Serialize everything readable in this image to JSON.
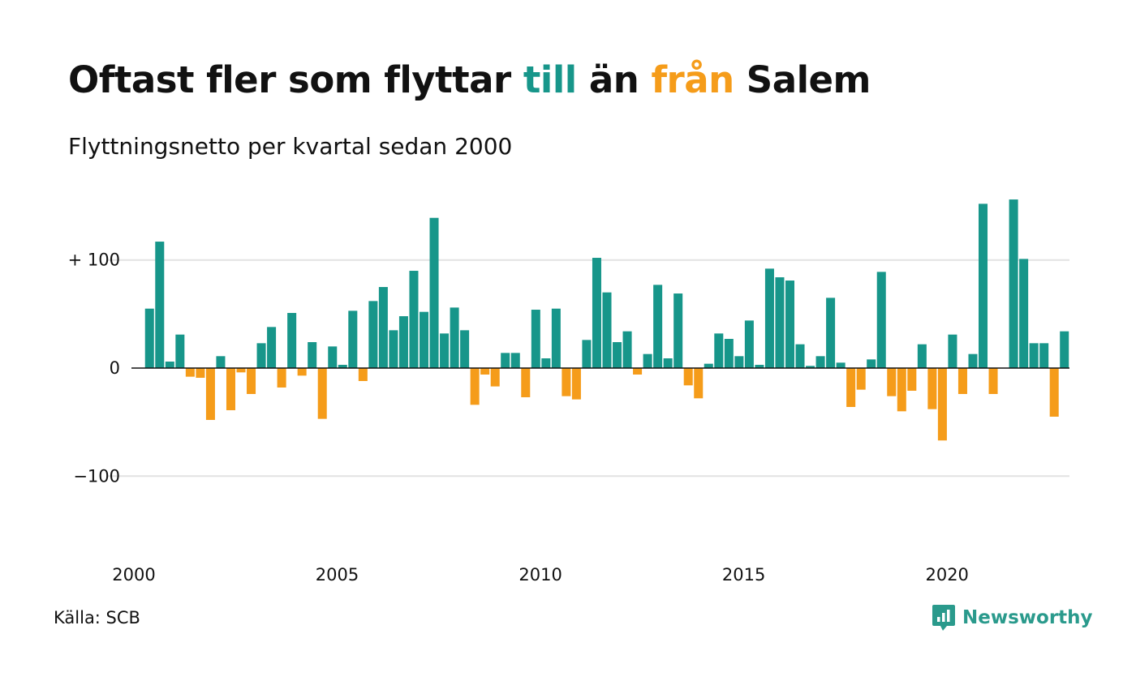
{
  "title": {
    "part1": "Oftast fler som flyttar ",
    "till": "till",
    "part2": " än ",
    "fran": "från",
    "part3": " Salem"
  },
  "subtitle": "Flyttningsnetto per kvartal sedan 2000",
  "source": "Källa: SCB",
  "brand": {
    "name": "Newsworthy",
    "icon": "newsworthy-logo-icon"
  },
  "colors": {
    "positive": "#17968a",
    "negative": "#f59c1a",
    "grid": "#e2e2e2",
    "baseline": "#111111",
    "text": "#111111",
    "brand": "#2a9a8c"
  },
  "chart_data": {
    "type": "bar",
    "title": "Oftast fler som flyttar till än från Salem",
    "subtitle": "Flyttningsnetto per kvartal sedan 2000",
    "xlabel": "",
    "ylabel": "",
    "first_quarter": "2000 Q1",
    "x_ticks": [
      "2000",
      "2005",
      "2010",
      "2015",
      "2020"
    ],
    "y_ticks": [
      {
        "value": 100,
        "label": "+ 100"
      },
      {
        "value": 0,
        "label": "0"
      },
      {
        "value": -100,
        "label": "−100"
      }
    ],
    "ylim": [
      -170,
      160
    ],
    "grid": true,
    "legend": "none",
    "values": [
      55,
      117,
      6,
      31,
      -8,
      -9,
      -48,
      11,
      -39,
      -4,
      -24,
      23,
      38,
      -18,
      51,
      -7,
      24,
      -47,
      20,
      3,
      53,
      -12,
      62,
      75,
      35,
      48,
      90,
      52,
      139,
      32,
      56,
      35,
      -34,
      -6,
      -17,
      14,
      14,
      -27,
      54,
      9,
      55,
      -26,
      -29,
      26,
      102,
      70,
      24,
      34,
      -6,
      13,
      77,
      9,
      69,
      -16,
      -28,
      4,
      32,
      27,
      11,
      44,
      3,
      92,
      84,
      81,
      22,
      2,
      11,
      65,
      5,
      -36,
      -20,
      8,
      89,
      -26,
      -40,
      -21,
      22,
      -38,
      -67,
      31,
      -24,
      13,
      152,
      -24,
      0,
      156,
      101,
      23,
      23,
      -45,
      34
    ]
  }
}
